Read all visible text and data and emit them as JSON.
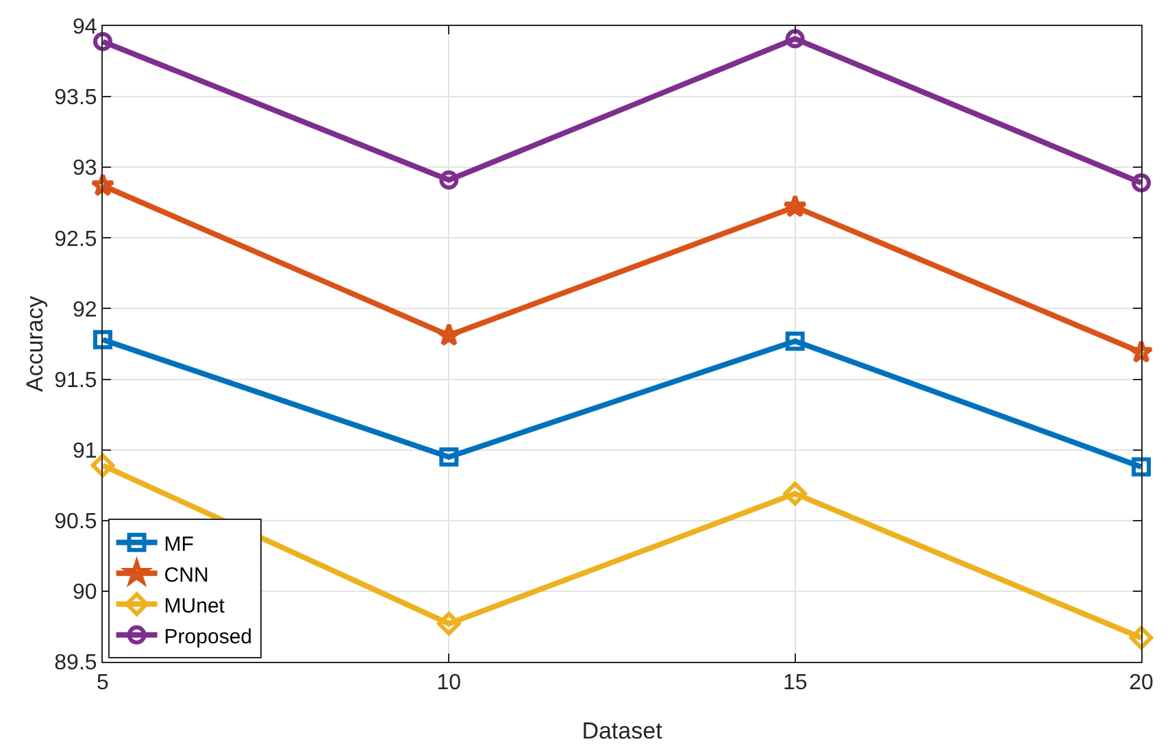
{
  "chart_data": {
    "type": "line",
    "xlabel": "Dataset",
    "ylabel": "Accuracy",
    "x": [
      5,
      10,
      15,
      20
    ],
    "xlim": [
      5,
      20
    ],
    "xticks": [
      5,
      10,
      15,
      20
    ],
    "ylim": [
      89.5,
      94
    ],
    "yticks": [
      89.5,
      90,
      90.5,
      91,
      91.5,
      92,
      92.5,
      93,
      93.5,
      94
    ],
    "grid": true,
    "legend": "bottom left",
    "line_style": "solid",
    "series": [
      {
        "name": "MF",
        "color": "#0072bd",
        "marker": "square",
        "values": [
          91.78,
          90.95,
          91.77,
          90.88
        ]
      },
      {
        "name": "CNN",
        "color": "#d95319",
        "marker": "star",
        "values": [
          92.87,
          91.81,
          92.72,
          91.69
        ]
      },
      {
        "name": "MUnet",
        "color": "#edb120",
        "marker": "diamond",
        "values": [
          90.89,
          89.77,
          90.69,
          89.67
        ]
      },
      {
        "name": "Proposed",
        "color": "#7e2f8e",
        "marker": "circle",
        "values": [
          93.89,
          92.91,
          93.91,
          92.89
        ]
      }
    ]
  }
}
